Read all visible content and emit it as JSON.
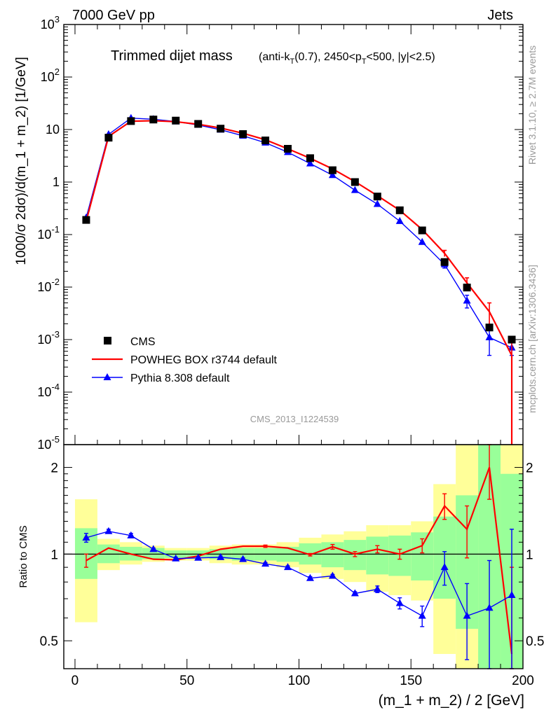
{
  "header": {
    "left": "7000 GeV pp",
    "right": "Jets",
    "title_main": "Trimmed dijet mass",
    "title_detail": "(anti-k_T(0.7), 2450<p_T<500, |y|<2.5)",
    "side_top": "Rivet 3.1.10, ≥ 2.7M events",
    "side_bottom": "mcplots.cern.ch [arXiv:1306.3436]",
    "watermark": "CMS_2013_I1224539"
  },
  "colors": {
    "cms": "#000000",
    "powheg": "#ff0000",
    "pythia": "#0000ff",
    "band_outer": "#ffff99",
    "band_inner": "#99ff99"
  },
  "chart_data": [
    {
      "type": "line",
      "panel": "main",
      "ylabel": "1000/σ 2dσ)/d(m_1 + m_2) [1/GeV]",
      "yscale": "log",
      "ylim": [
        1e-05,
        1000
      ],
      "yticks": [
        "10^-5",
        "10^-4",
        "10^-3",
        "10^-2",
        "10^-1",
        "1",
        "10",
        "10^2",
        "10^3"
      ],
      "xlim": [
        -5,
        200
      ],
      "x": [
        5,
        15,
        25,
        35,
        45,
        55,
        65,
        75,
        85,
        95,
        105,
        115,
        125,
        135,
        145,
        155,
        165,
        175,
        185,
        195
      ],
      "legend_position": "bottom-left",
      "series": [
        {
          "name": "CMS",
          "style": "markers",
          "values": [
            0.19,
            7.0,
            14.5,
            15.5,
            14.8,
            12.8,
            10.4,
            8.2,
            6.2,
            4.3,
            2.85,
            1.68,
            1.0,
            0.53,
            0.29,
            0.12,
            0.03,
            0.0098,
            0.0017,
            0.001
          ]
        },
        {
          "name": "POWHEG BOX r3744 default",
          "style": "line",
          "values": [
            0.18,
            7.4,
            14.4,
            14.7,
            14.1,
            12.6,
            10.7,
            8.5,
            6.4,
            4.3,
            2.84,
            1.78,
            1.02,
            0.55,
            0.29,
            0.125,
            0.044,
            0.012,
            0.0034,
            0.0005
          ],
          "err_hi": [
            0,
            0,
            0,
            0,
            0,
            0,
            0,
            0,
            0,
            0,
            0,
            0,
            0,
            0,
            0,
            0,
            0.006,
            0.003,
            0.0016,
            0.0005
          ],
          "err_lo": [
            0,
            0,
            0,
            0,
            0,
            0,
            0,
            0,
            0,
            0,
            0,
            0,
            0,
            0,
            0,
            0,
            0.006,
            0.003,
            0.0016,
            0.0005
          ]
        },
        {
          "name": "Pythia 8.308 default",
          "style": "line-markers",
          "values": [
            0.21,
            8.1,
            16.5,
            15.7,
            14.2,
            12.2,
            9.9,
            7.6,
            5.6,
            3.7,
            2.25,
            1.35,
            0.7,
            0.38,
            0.18,
            0.072,
            0.027,
            0.0055,
            0.0011,
            0.0007
          ],
          "err_hi": [
            0,
            0,
            0,
            0,
            0,
            0,
            0,
            0,
            0,
            0,
            0,
            0,
            0,
            0,
            0,
            0,
            0.004,
            0.0015,
            0.0006,
            0.0002
          ],
          "err_lo": [
            0,
            0,
            0,
            0,
            0,
            0,
            0,
            0,
            0,
            0,
            0,
            0,
            0,
            0,
            0,
            0,
            0.004,
            0.0015,
            0.0006,
            0.0002
          ]
        }
      ]
    },
    {
      "type": "line",
      "panel": "ratio",
      "xlabel": "(m_1 + m_2) / 2 [GeV]",
      "ylabel": "Ratio to CMS",
      "yscale": "log",
      "ylim": [
        0.4,
        2.4
      ],
      "yticks": [
        0.5,
        1,
        2
      ],
      "xlim": [
        -5,
        200
      ],
      "xticks": [
        0,
        50,
        100,
        150,
        200
      ],
      "bins": [
        [
          0,
          10
        ],
        [
          10,
          20
        ],
        [
          20,
          30
        ],
        [
          30,
          40
        ],
        [
          40,
          50
        ],
        [
          50,
          60
        ],
        [
          60,
          70
        ],
        [
          70,
          80
        ],
        [
          80,
          90
        ],
        [
          90,
          100
        ],
        [
          100,
          110
        ],
        [
          110,
          120
        ],
        [
          120,
          130
        ],
        [
          130,
          140
        ],
        [
          140,
          150
        ],
        [
          150,
          160
        ],
        [
          160,
          170
        ],
        [
          170,
          180
        ],
        [
          180,
          190
        ],
        [
          190,
          200
        ]
      ],
      "band_outer": [
        [
          0.58,
          1.55
        ],
        [
          0.88,
          1.13
        ],
        [
          0.92,
          1.1
        ],
        [
          0.94,
          1.07
        ],
        [
          0.95,
          1.05
        ],
        [
          0.95,
          1.05
        ],
        [
          0.93,
          1.07
        ],
        [
          0.92,
          1.08
        ],
        [
          0.92,
          1.08
        ],
        [
          0.9,
          1.1
        ],
        [
          0.86,
          1.14
        ],
        [
          0.82,
          1.17
        ],
        [
          0.8,
          1.2
        ],
        [
          0.74,
          1.26
        ],
        [
          0.72,
          1.26
        ],
        [
          0.69,
          1.3
        ],
        [
          0.45,
          1.75
        ],
        [
          0.3,
          2.4
        ],
        [
          0.3,
          2.4
        ],
        [
          0.3,
          2.4
        ]
      ],
      "band_inner": [
        [
          0.82,
          1.23
        ],
        [
          0.93,
          1.08
        ],
        [
          0.95,
          1.06
        ],
        [
          0.96,
          1.05
        ],
        [
          0.97,
          1.03
        ],
        [
          0.97,
          1.03
        ],
        [
          0.96,
          1.04
        ],
        [
          0.95,
          1.05
        ],
        [
          0.95,
          1.05
        ],
        [
          0.94,
          1.06
        ],
        [
          0.92,
          1.09
        ],
        [
          0.9,
          1.1
        ],
        [
          0.88,
          1.12
        ],
        [
          0.85,
          1.15
        ],
        [
          0.84,
          1.16
        ],
        [
          0.81,
          1.19
        ],
        [
          0.7,
          1.35
        ],
        [
          0.55,
          1.6
        ],
        [
          0.3,
          2.4
        ],
        [
          0.3,
          1.9
        ]
      ],
      "x": [
        5,
        15,
        25,
        35,
        45,
        55,
        65,
        75,
        85,
        95,
        105,
        115,
        125,
        135,
        145,
        155,
        165,
        175,
        185,
        195
      ],
      "series": [
        {
          "name": "POWHEG BOX r3744 default",
          "values": [
            0.95,
            1.05,
            1.0,
            0.96,
            0.955,
            0.985,
            1.04,
            1.065,
            1.065,
            1.05,
            0.995,
            1.06,
            1.0,
            1.04,
            1.0,
            1.07,
            1.47,
            1.22,
            2.0,
            0.45
          ],
          "err": [
            0.05,
            0,
            0,
            0,
            0,
            0,
            0,
            0,
            0.01,
            0,
            0.01,
            0.02,
            0.02,
            0.03,
            0.04,
            0.06,
            0.15,
            0.25,
            0.45,
            0.45
          ]
        },
        {
          "name": "Pythia 8.308 default",
          "values": [
            1.14,
            1.2,
            1.16,
            1.04,
            0.965,
            0.97,
            0.975,
            0.96,
            0.925,
            0.9,
            0.825,
            0.84,
            0.73,
            0.755,
            0.675,
            0.61,
            0.9,
            0.61,
            0.65,
            0.72
          ],
          "err": [
            0.04,
            0.02,
            0.02,
            0.01,
            0.01,
            0.01,
            0.01,
            0.01,
            0.01,
            0.01,
            0.01,
            0.01,
            0.01,
            0.02,
            0.03,
            0.05,
            0.12,
            0.18,
            0.3,
            0.5
          ]
        }
      ]
    }
  ]
}
